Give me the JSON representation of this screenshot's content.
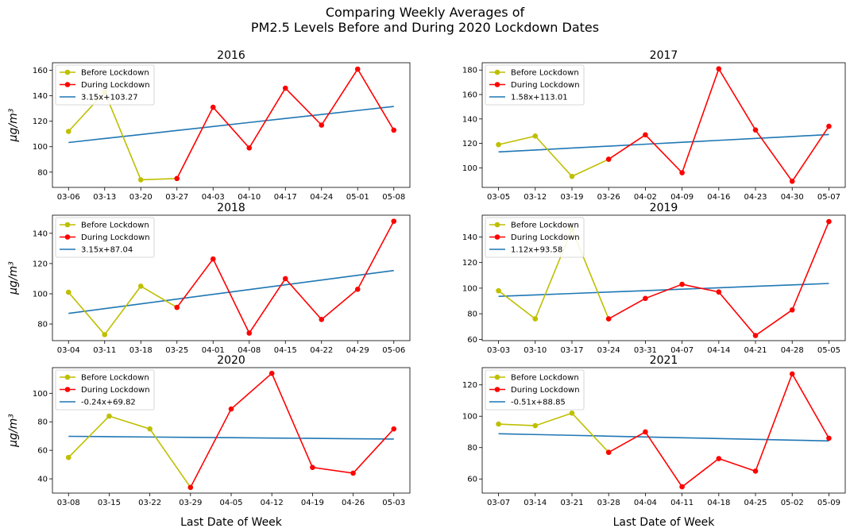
{
  "figure": {
    "title_lines": [
      "Comparing Weekly Averages of",
      "PM2.5 Levels Before and During 2020 Lockdown Dates"
    ],
    "xlabel": "Last Date of Week",
    "ylabel": "μg/m³",
    "colors": {
      "before": "#bfbf00",
      "during": "#ff0000",
      "trend": "#1f77b4"
    }
  },
  "chart_data": [
    {
      "type": "line",
      "title": "2016",
      "categories": [
        "03-06",
        "03-13",
        "03-20",
        "03-27",
        "04-03",
        "04-10",
        "04-17",
        "04-24",
        "05-01",
        "05-08"
      ],
      "series": [
        {
          "name": "Before Lockdown",
          "values": [
            112,
            143,
            74,
            75,
            null,
            null,
            null,
            null,
            null,
            null
          ]
        },
        {
          "name": "During Lockdown",
          "values": [
            null,
            null,
            null,
            75,
            131,
            99,
            146,
            117,
            161,
            113
          ]
        },
        {
          "name": "3.15x+103.27",
          "values": [
            103.27,
            106.42,
            109.57,
            112.72,
            115.87,
            119.02,
            122.17,
            125.32,
            128.47,
            131.62
          ]
        }
      ],
      "ylim": [
        68,
        166
      ],
      "yticks": [
        80,
        100,
        120,
        140,
        160
      ],
      "ylabel": "μg/m³",
      "xlabel": "",
      "legend": "top-left"
    },
    {
      "type": "line",
      "title": "2017",
      "categories": [
        "03-05",
        "03-12",
        "03-19",
        "03-26",
        "04-02",
        "04-09",
        "04-16",
        "04-23",
        "04-30",
        "05-07"
      ],
      "series": [
        {
          "name": "Before Lockdown",
          "values": [
            119,
            126,
            93,
            107,
            null,
            null,
            null,
            null,
            null,
            null
          ]
        },
        {
          "name": "During Lockdown",
          "values": [
            null,
            null,
            null,
            107,
            127,
            96,
            181,
            131,
            89,
            134
          ]
        },
        {
          "name": "1.58x+113.01",
          "values": [
            113.01,
            114.59,
            116.17,
            117.75,
            119.33,
            120.91,
            122.49,
            124.07,
            125.65,
            127.23
          ]
        }
      ],
      "ylim": [
        84,
        186
      ],
      "yticks": [
        100,
        120,
        140,
        160,
        180
      ],
      "ylabel": "",
      "xlabel": "",
      "legend": "top-left"
    },
    {
      "type": "line",
      "title": "2018",
      "categories": [
        "03-04",
        "03-11",
        "03-18",
        "03-25",
        "04-01",
        "04-08",
        "04-15",
        "04-22",
        "04-29",
        "05-06"
      ],
      "series": [
        {
          "name": "Before Lockdown",
          "values": [
            101,
            73,
            105,
            91,
            null,
            null,
            null,
            null,
            null,
            null
          ]
        },
        {
          "name": "During Lockdown",
          "values": [
            null,
            null,
            null,
            91,
            123,
            74,
            110,
            83,
            103,
            148
          ]
        },
        {
          "name": "3.15x+87.04",
          "values": [
            87.04,
            90.19,
            93.34,
            96.49,
            99.64,
            102.79,
            105.94,
            109.09,
            112.24,
            115.39
          ]
        }
      ],
      "ylim": [
        69,
        152
      ],
      "yticks": [
        80,
        100,
        120,
        140
      ],
      "ylabel": "μg/m³",
      "xlabel": "",
      "legend": "top-left"
    },
    {
      "type": "line",
      "title": "2019",
      "categories": [
        "03-03",
        "03-10",
        "03-17",
        "03-24",
        "03-31",
        "04-07",
        "04-14",
        "04-21",
        "04-28",
        "05-05"
      ],
      "series": [
        {
          "name": "Before Lockdown",
          "values": [
            98,
            76,
            146,
            76,
            null,
            null,
            null,
            null,
            null,
            null
          ]
        },
        {
          "name": "During Lockdown",
          "values": [
            null,
            null,
            null,
            76,
            92,
            103,
            97,
            63,
            83,
            152
          ]
        },
        {
          "name": "1.12x+93.58",
          "values": [
            93.58,
            94.7,
            95.82,
            96.94,
            98.06,
            99.18,
            100.3,
            101.42,
            102.54,
            103.66
          ]
        }
      ],
      "ylim": [
        59,
        157
      ],
      "yticks": [
        60,
        80,
        100,
        120,
        140
      ],
      "ylabel": "",
      "xlabel": "",
      "legend": "top-left"
    },
    {
      "type": "line",
      "title": "2020",
      "categories": [
        "03-08",
        "03-15",
        "03-22",
        "03-29",
        "04-05",
        "04-12",
        "04-19",
        "04-26",
        "05-03"
      ],
      "series": [
        {
          "name": "Before Lockdown",
          "values": [
            55,
            84,
            75,
            34,
            null,
            null,
            null,
            null,
            null
          ]
        },
        {
          "name": "During Lockdown",
          "values": [
            null,
            null,
            null,
            34,
            89,
            114,
            48,
            44,
            75
          ]
        },
        {
          "name": "-0.24x+69.82",
          "values": [
            69.82,
            69.58,
            69.34,
            69.1,
            68.86,
            68.62,
            68.38,
            68.14,
            67.9
          ]
        }
      ],
      "ylim": [
        30,
        118
      ],
      "yticks": [
        40,
        60,
        80,
        100
      ],
      "ylabel": "μg/m³",
      "xlabel": "Last Date of Week",
      "legend": "top-left"
    },
    {
      "type": "line",
      "title": "2021",
      "categories": [
        "03-07",
        "03-14",
        "03-21",
        "03-28",
        "04-04",
        "04-11",
        "04-18",
        "04-25",
        "05-02",
        "05-09"
      ],
      "series": [
        {
          "name": "Before Lockdown",
          "values": [
            95,
            94,
            102,
            77,
            null,
            null,
            null,
            null,
            null,
            null
          ]
        },
        {
          "name": "During Lockdown",
          "values": [
            null,
            null,
            null,
            77,
            90,
            55,
            73,
            65,
            127,
            86
          ]
        },
        {
          "name": "-0.51x+88.85",
          "values": [
            88.85,
            88.34,
            87.83,
            87.32,
            86.81,
            86.3,
            85.79,
            85.28,
            84.77,
            84.26
          ]
        }
      ],
      "ylim": [
        51,
        131
      ],
      "yticks": [
        60,
        80,
        100,
        120
      ],
      "ylabel": "",
      "xlabel": "Last Date of Week",
      "legend": "top-left"
    }
  ]
}
